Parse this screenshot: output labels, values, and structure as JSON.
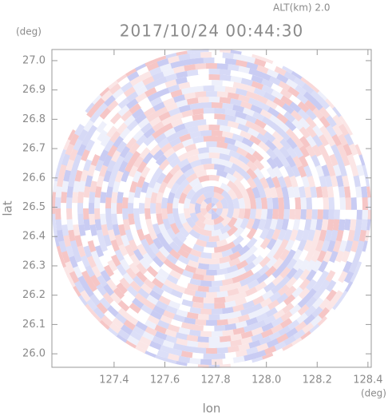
{
  "chart_data": {
    "type": "radar-ppi",
    "title": "2017/10/24 00:44:30",
    "altitude_label": "ALT(km) 2.0",
    "y_unit": "(deg)",
    "x_unit": "(deg)",
    "xlabel": "lon",
    "ylabel": "lat",
    "xlim": [
      127.155,
      128.413
    ],
    "ylim": [
      25.954,
      27.038
    ],
    "xticks": [
      127.4,
      127.6,
      127.8,
      {
        "value": 128,
        "label": "128.0"
      },
      128.2,
      128.4
    ],
    "yticks": [
      {
        "value": 26,
        "label": "26.0"
      },
      26.1,
      26.2,
      26.3,
      26.4,
      26.5,
      26.6,
      26.7,
      26.8,
      26.9,
      {
        "value": 27,
        "label": "27.0"
      }
    ]
  }
}
